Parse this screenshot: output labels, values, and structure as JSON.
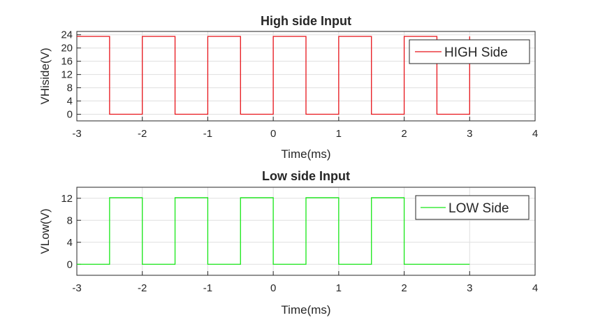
{
  "chart_data": [
    {
      "type": "line",
      "title": "High side Input",
      "xlabel": "Time(ms)",
      "ylabel": "VHiside(V)",
      "xlim": [
        -3,
        4
      ],
      "ylim": [
        -2,
        25
      ],
      "xticks": [
        -3,
        -2,
        -1,
        0,
        1,
        2,
        3,
        4
      ],
      "yticks": [
        0,
        4,
        8,
        12,
        16,
        20,
        24
      ],
      "grid": true,
      "legend_position": "top-right",
      "series": [
        {
          "name": "HIGH Side",
          "color": "#e8141a",
          "high_level": 23.5,
          "low_level": 0,
          "x": [
            -3,
            -2.5,
            -2.5,
            -2,
            -2,
            -1.5,
            -1.5,
            -1,
            -1,
            -0.5,
            -0.5,
            0,
            0,
            0.5,
            0.5,
            1,
            1,
            1.5,
            1.5,
            2,
            2,
            2.5,
            2.5,
            3,
            3
          ],
          "y": [
            23.5,
            23.5,
            0,
            0,
            23.5,
            23.5,
            0,
            0,
            23.5,
            23.5,
            0,
            0,
            23.5,
            23.5,
            0,
            0,
            23.5,
            23.5,
            0,
            0,
            23.5,
            23.5,
            0,
            0,
            23.5
          ]
        }
      ]
    },
    {
      "type": "line",
      "title": "Low side Input",
      "xlabel": "Time(ms)",
      "ylabel": "VLow(V)",
      "xlim": [
        -3,
        4
      ],
      "ylim": [
        -2,
        14
      ],
      "xticks": [
        -3,
        -2,
        -1,
        0,
        1,
        2,
        3,
        4
      ],
      "yticks": [
        0,
        4,
        8,
        12
      ],
      "grid": true,
      "legend_position": "top-right",
      "series": [
        {
          "name": "LOW Side",
          "color": "#17e817",
          "high_level": 12.1,
          "low_level": 0,
          "x": [
            -3,
            -2.5,
            -2.5,
            -2,
            -2,
            -1.5,
            -1.5,
            -1,
            -1,
            -0.5,
            -0.5,
            0,
            0,
            0.5,
            0.5,
            1,
            1,
            1.5,
            1.5,
            2,
            2,
            2.5,
            2.5,
            3,
            3
          ],
          "y": [
            0,
            0,
            12.1,
            12.1,
            0,
            0,
            12.1,
            12.1,
            0,
            0,
            12.1,
            12.1,
            0,
            0,
            12.1,
            12.1,
            0,
            0,
            12.1,
            12.1,
            0,
            0,
            0,
            0,
            0
          ]
        }
      ]
    }
  ]
}
